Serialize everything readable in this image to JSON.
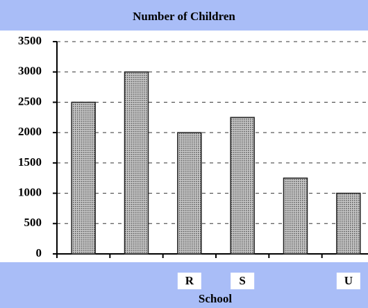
{
  "chart_data": {
    "type": "bar",
    "title": "Number of Children",
    "x_label": "School",
    "categories": [
      null,
      null,
      "R",
      "S",
      null,
      "U"
    ],
    "values": [
      2500,
      3000,
      2000,
      2250,
      1250,
      1000
    ],
    "color": "#9a9a9a",
    "ylim": [
      0,
      3500
    ],
    "yticks": [
      0,
      500,
      1000,
      1500,
      2000,
      2500,
      3000,
      3500
    ],
    "grid": true
  }
}
